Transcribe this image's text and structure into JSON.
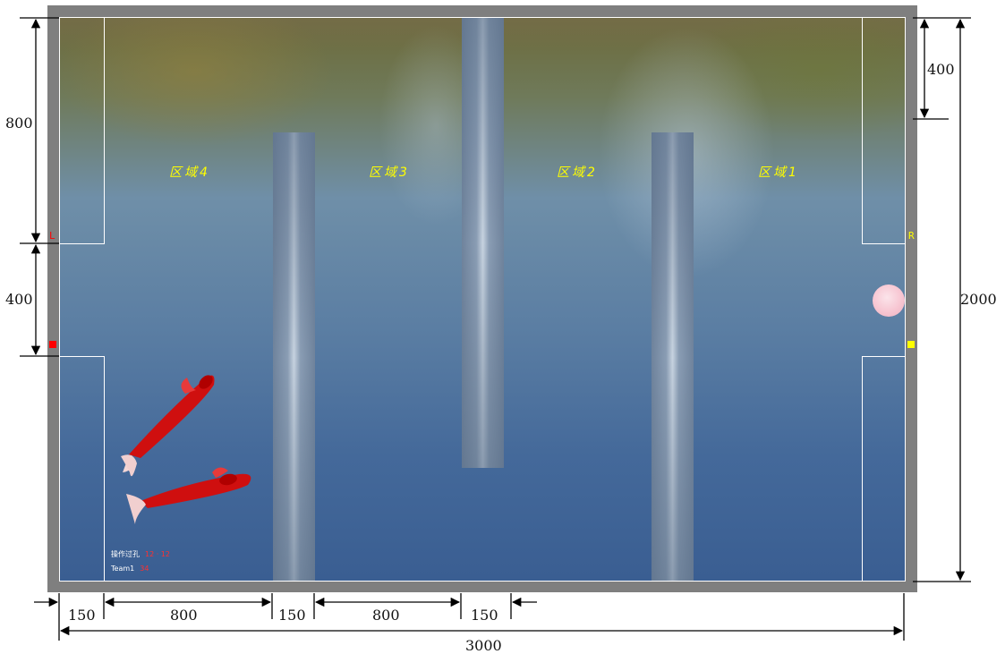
{
  "zones": [
    {
      "label": "区域4"
    },
    {
      "label": "区域3"
    },
    {
      "label": "区域2"
    },
    {
      "label": "区域1"
    }
  ],
  "side_labels": {
    "left": "L",
    "right": "R"
  },
  "info": {
    "line1_label": "操作过孔",
    "line1_value": "12 · 12",
    "line2_label": "Team1",
    "line2_value": "34"
  },
  "colors": {
    "zone_text": "#ffff00",
    "left_marker": "#ff0000",
    "right_marker": "#ffff00",
    "frame": "#7f7f7f",
    "fish": "#d40000",
    "ball": "#f7c6d2"
  },
  "dimensions": {
    "left_top": "800",
    "left_middle": "400",
    "right_top": "400",
    "right_total": "2000",
    "bottom_segments": [
      "150",
      "800",
      "150",
      "800",
      "150"
    ],
    "bottom_total": "3000"
  }
}
